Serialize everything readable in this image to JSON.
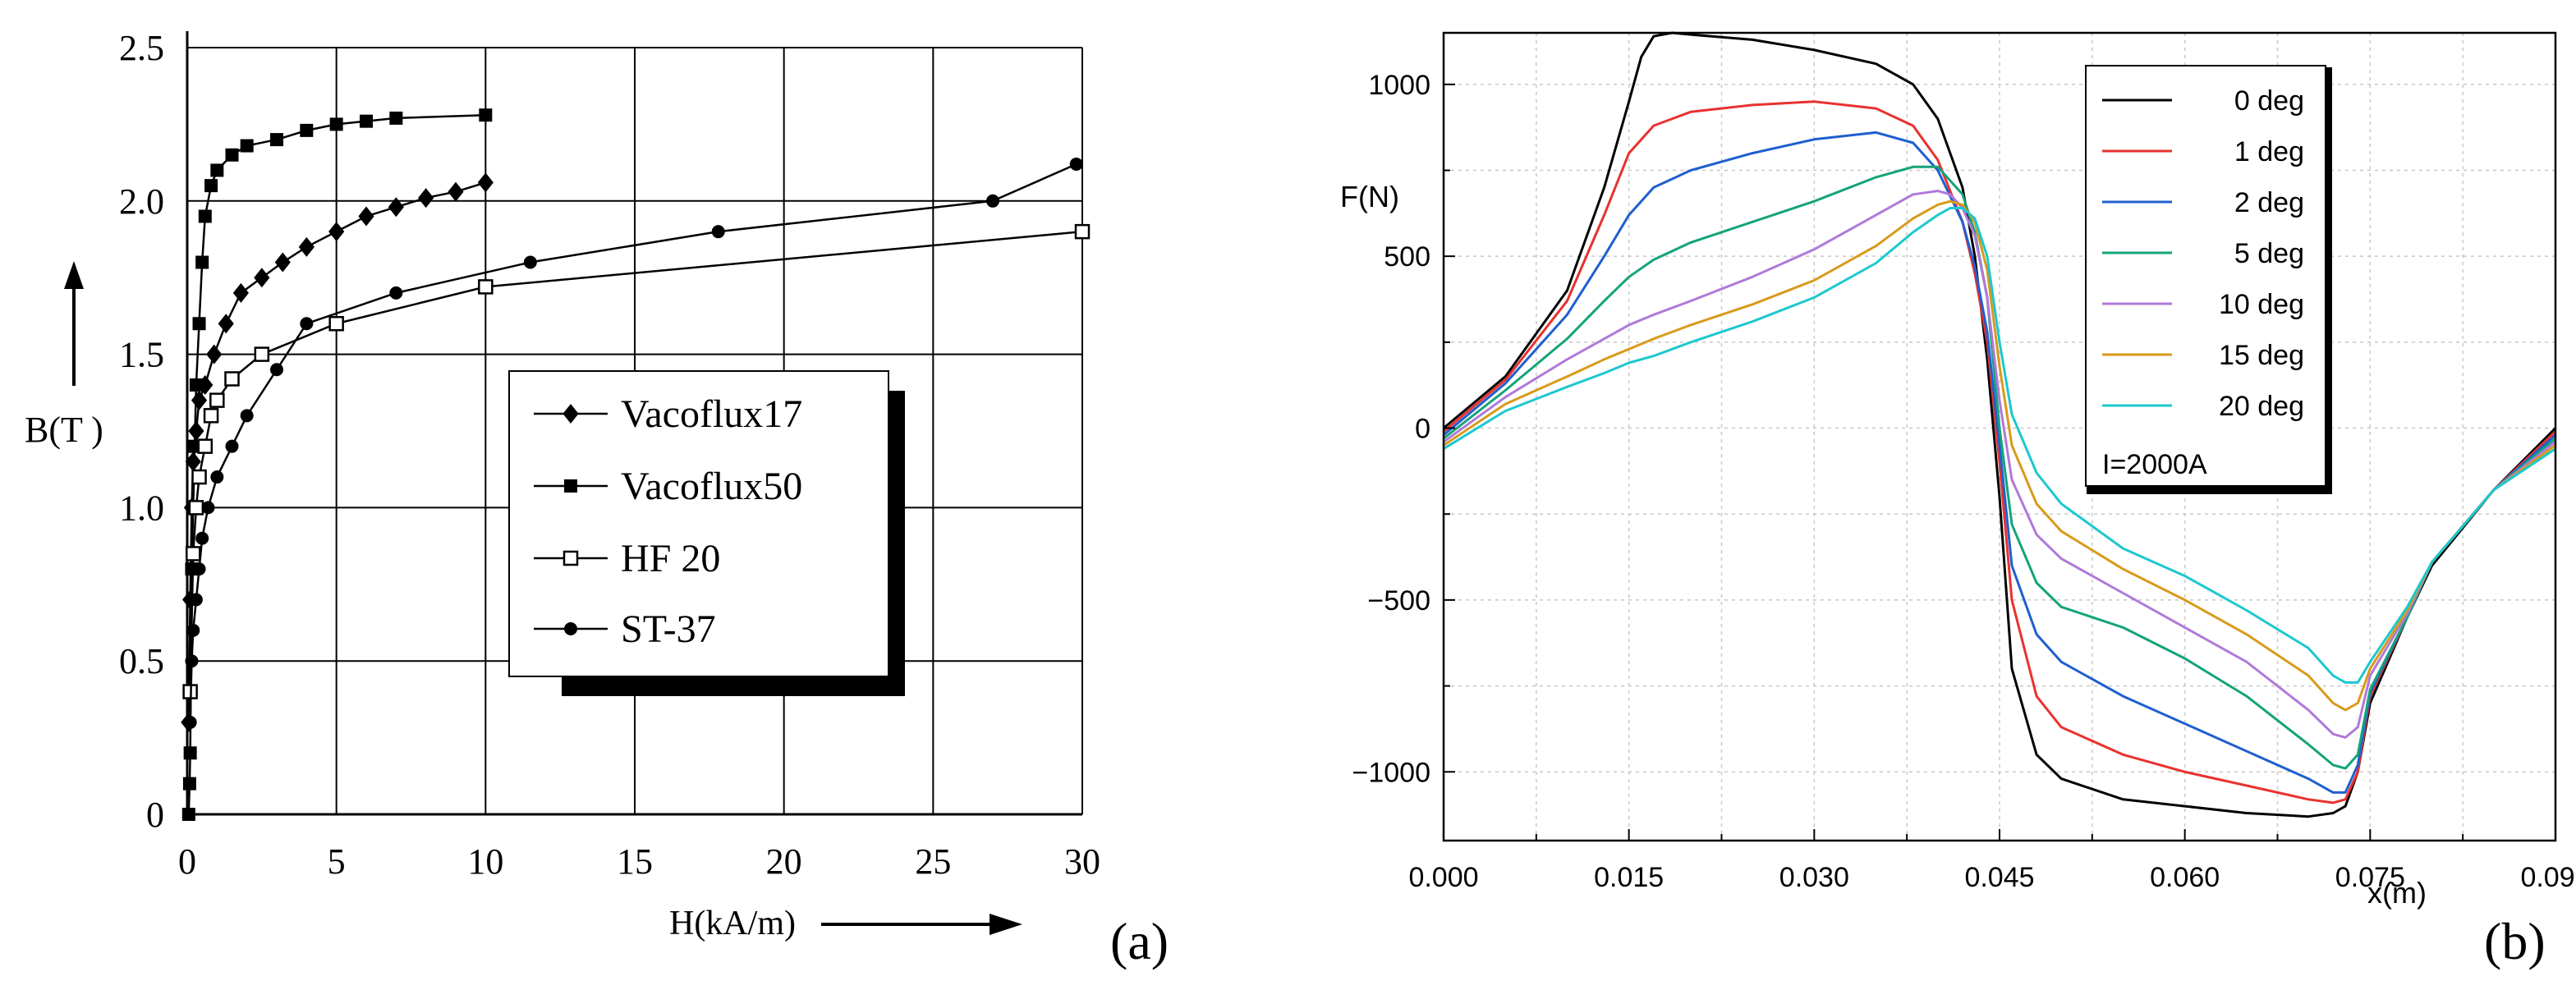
{
  "panel_a_label": "(a)",
  "panel_b_label": "(b)",
  "chart_data": [
    {
      "id": "a",
      "type": "line",
      "title": "",
      "xlabel": "H(kA/m)",
      "ylabel": "B(T )",
      "xlim": [
        0,
        30
      ],
      "ylim": [
        0,
        2.5
      ],
      "xticks": [
        0,
        5,
        10,
        15,
        20,
        25,
        30
      ],
      "xtick_labels": [
        "0",
        "5",
        "10",
        "15",
        "20",
        "25",
        "30"
      ],
      "yticks": [
        0,
        0.5,
        1.0,
        1.5,
        2.0,
        2.5
      ],
      "ytick_labels": [
        "0",
        "0.5",
        "1.0",
        "1.5",
        "2.0",
        "2.5"
      ],
      "grid": true,
      "legend_position": "bottom-right",
      "series": [
        {
          "name": "Vacoflux17",
          "marker": "diamond",
          "x": [
            0.05,
            0.1,
            0.15,
            0.2,
            0.3,
            0.4,
            0.6,
            0.9,
            1.3,
            1.8,
            2.5,
            3.2,
            4.0,
            5.0,
            6.0,
            7.0,
            8.0,
            9.0,
            10.0
          ],
          "y": [
            0.3,
            0.7,
            1.0,
            1.15,
            1.25,
            1.35,
            1.4,
            1.5,
            1.6,
            1.7,
            1.75,
            1.8,
            1.85,
            1.9,
            1.95,
            1.98,
            2.01,
            2.03,
            2.06
          ]
        },
        {
          "name": "Vacoflux50",
          "marker": "square",
          "x": [
            0.05,
            0.08,
            0.1,
            0.12,
            0.15,
            0.2,
            0.25,
            0.3,
            0.4,
            0.5,
            0.6,
            0.8,
            1.0,
            1.5,
            2.0,
            3.0,
            4.0,
            5.0,
            6.0,
            7.0,
            10.0
          ],
          "y": [
            0.0,
            0.1,
            0.2,
            0.4,
            0.8,
            1.0,
            1.2,
            1.4,
            1.6,
            1.8,
            1.95,
            2.05,
            2.1,
            2.15,
            2.18,
            2.2,
            2.23,
            2.25,
            2.26,
            2.27,
            2.28
          ]
        },
        {
          "name": "HF 20",
          "marker": "open-square",
          "x": [
            0.1,
            0.2,
            0.3,
            0.4,
            0.6,
            0.8,
            1.0,
            1.5,
            2.5,
            5.0,
            10.0,
            30.0
          ],
          "y": [
            0.4,
            0.85,
            1.0,
            1.1,
            1.2,
            1.3,
            1.35,
            1.42,
            1.5,
            1.6,
            1.72,
            1.9
          ]
        },
        {
          "name": "ST-37",
          "marker": "circle",
          "x": [
            0.1,
            0.15,
            0.2,
            0.3,
            0.4,
            0.5,
            0.7,
            1.0,
            1.5,
            2.0,
            3.0,
            4.0,
            7.0,
            11.5,
            17.8,
            27.0,
            29.8
          ],
          "y": [
            0.3,
            0.5,
            0.6,
            0.7,
            0.8,
            0.9,
            1.0,
            1.1,
            1.2,
            1.3,
            1.45,
            1.6,
            1.7,
            1.8,
            1.9,
            2.0,
            2.12
          ]
        }
      ]
    },
    {
      "id": "b",
      "type": "line",
      "title": "",
      "xlabel": "x(m)",
      "ylabel": "F(N)",
      "xlim": [
        0,
        0.09
      ],
      "ylim": [
        -1200,
        1150
      ],
      "xticks": [
        0,
        0.015,
        0.03,
        0.045,
        0.06,
        0.075,
        0.09
      ],
      "xtick_labels": [
        "0.000",
        "0.015",
        "0.030",
        "0.045",
        "0.060",
        "0.075",
        "0.090"
      ],
      "yticks": [
        -1000,
        -500,
        0,
        500,
        1000
      ],
      "ytick_labels": [
        "−1000",
        "−500",
        "0",
        "500",
        "1000"
      ],
      "grid": true,
      "legend_position": "top-right",
      "annotation": "I=2000A",
      "series": [
        {
          "name": "0 deg",
          "color": "#000000",
          "x": [
            0,
            0.005,
            0.01,
            0.013,
            0.015,
            0.016,
            0.017,
            0.0185,
            0.02,
            0.025,
            0.03,
            0.035,
            0.038,
            0.04,
            0.042,
            0.043,
            0.044,
            0.045,
            0.046,
            0.048,
            0.05,
            0.055,
            0.06,
            0.065,
            0.07,
            0.072,
            0.073,
            0.074,
            0.075,
            0.078,
            0.08,
            0.085,
            0.09
          ],
          "y": [
            0,
            150,
            400,
            700,
            950,
            1080,
            1140,
            1150,
            1145,
            1130,
            1100,
            1060,
            1000,
            900,
            700,
            500,
            200,
            -200,
            -700,
            -950,
            -1020,
            -1080,
            -1100,
            -1120,
            -1130,
            -1120,
            -1100,
            -1000,
            -800,
            -550,
            -400,
            -180,
            0
          ]
        },
        {
          "name": "1 deg",
          "color": "#e8322f",
          "x": [
            0,
            0.005,
            0.01,
            0.013,
            0.015,
            0.017,
            0.02,
            0.025,
            0.03,
            0.035,
            0.038,
            0.04,
            0.042,
            0.043,
            0.044,
            0.045,
            0.046,
            0.048,
            0.05,
            0.055,
            0.06,
            0.065,
            0.07,
            0.072,
            0.073,
            0.074,
            0.075,
            0.078,
            0.08,
            0.085,
            0.09
          ],
          "y": [
            -10,
            140,
            370,
            620,
            800,
            880,
            920,
            940,
            950,
            930,
            880,
            780,
            600,
            450,
            250,
            -100,
            -500,
            -780,
            -870,
            -950,
            -1000,
            -1040,
            -1080,
            -1090,
            -1080,
            -1000,
            -780,
            -550,
            -390,
            -180,
            -10
          ]
        },
        {
          "name": "2 deg",
          "color": "#1f5fcf",
          "x": [
            0,
            0.005,
            0.01,
            0.013,
            0.015,
            0.017,
            0.02,
            0.025,
            0.03,
            0.035,
            0.038,
            0.04,
            0.042,
            0.043,
            0.044,
            0.045,
            0.046,
            0.048,
            0.05,
            0.055,
            0.06,
            0.065,
            0.07,
            0.072,
            0.073,
            0.074,
            0.075,
            0.078,
            0.08,
            0.085,
            0.09
          ],
          "y": [
            -20,
            130,
            330,
            500,
            620,
            700,
            750,
            800,
            840,
            860,
            830,
            750,
            600,
            470,
            280,
            -50,
            -400,
            -600,
            -680,
            -780,
            -860,
            -940,
            -1020,
            -1060,
            -1060,
            -980,
            -770,
            -550,
            -390,
            -180,
            -20
          ]
        },
        {
          "name": "5 deg",
          "color": "#14a37a",
          "x": [
            0,
            0.005,
            0.01,
            0.013,
            0.015,
            0.017,
            0.02,
            0.025,
            0.03,
            0.035,
            0.038,
            0.04,
            0.042,
            0.043,
            0.044,
            0.045,
            0.046,
            0.048,
            0.05,
            0.055,
            0.06,
            0.065,
            0.07,
            0.072,
            0.073,
            0.074,
            0.075,
            0.078,
            0.08,
            0.085,
            0.09
          ],
          "y": [
            -30,
            110,
            260,
            370,
            440,
            490,
            540,
            600,
            660,
            730,
            760,
            760,
            680,
            570,
            380,
            0,
            -280,
            -450,
            -520,
            -580,
            -670,
            -780,
            -920,
            -980,
            -990,
            -950,
            -760,
            -550,
            -390,
            -180,
            -30
          ]
        },
        {
          "name": "10 deg",
          "color": "#b079d9",
          "x": [
            0,
            0.005,
            0.01,
            0.013,
            0.015,
            0.017,
            0.02,
            0.025,
            0.03,
            0.035,
            0.038,
            0.04,
            0.041,
            0.042,
            0.043,
            0.044,
            0.045,
            0.046,
            0.048,
            0.05,
            0.055,
            0.06,
            0.065,
            0.07,
            0.072,
            0.073,
            0.074,
            0.075,
            0.078,
            0.08,
            0.085,
            0.09
          ],
          "y": [
            -40,
            90,
            200,
            260,
            300,
            330,
            370,
            440,
            520,
            620,
            680,
            690,
            680,
            640,
            560,
            380,
            80,
            -150,
            -310,
            -380,
            -480,
            -580,
            -680,
            -820,
            -890,
            -900,
            -870,
            -720,
            -540,
            -390,
            -180,
            -40
          ]
        },
        {
          "name": "15 deg",
          "color": "#d89a1a",
          "x": [
            0,
            0.005,
            0.01,
            0.013,
            0.015,
            0.017,
            0.02,
            0.025,
            0.03,
            0.035,
            0.038,
            0.04,
            0.041,
            0.042,
            0.043,
            0.044,
            0.045,
            0.046,
            0.048,
            0.05,
            0.055,
            0.06,
            0.065,
            0.07,
            0.072,
            0.073,
            0.074,
            0.075,
            0.078,
            0.08,
            0.085,
            0.09
          ],
          "y": [
            -50,
            70,
            150,
            200,
            230,
            260,
            300,
            360,
            430,
            530,
            610,
            650,
            660,
            650,
            600,
            460,
            180,
            -50,
            -220,
            -300,
            -410,
            -500,
            -600,
            -720,
            -800,
            -820,
            -800,
            -700,
            -530,
            -390,
            -180,
            -50
          ]
        },
        {
          "name": "20 deg",
          "color": "#1cc8cf",
          "x": [
            0,
            0.005,
            0.01,
            0.013,
            0.015,
            0.017,
            0.02,
            0.025,
            0.03,
            0.035,
            0.038,
            0.04,
            0.041,
            0.042,
            0.043,
            0.044,
            0.045,
            0.046,
            0.048,
            0.05,
            0.055,
            0.06,
            0.065,
            0.07,
            0.072,
            0.073,
            0.074,
            0.075,
            0.078,
            0.08,
            0.085,
            0.09
          ],
          "y": [
            -60,
            50,
            120,
            160,
            190,
            210,
            250,
            310,
            380,
            480,
            570,
            620,
            640,
            640,
            610,
            500,
            250,
            40,
            -130,
            -220,
            -350,
            -430,
            -530,
            -640,
            -720,
            -740,
            -740,
            -680,
            -520,
            -390,
            -180,
            -60
          ]
        }
      ]
    }
  ]
}
